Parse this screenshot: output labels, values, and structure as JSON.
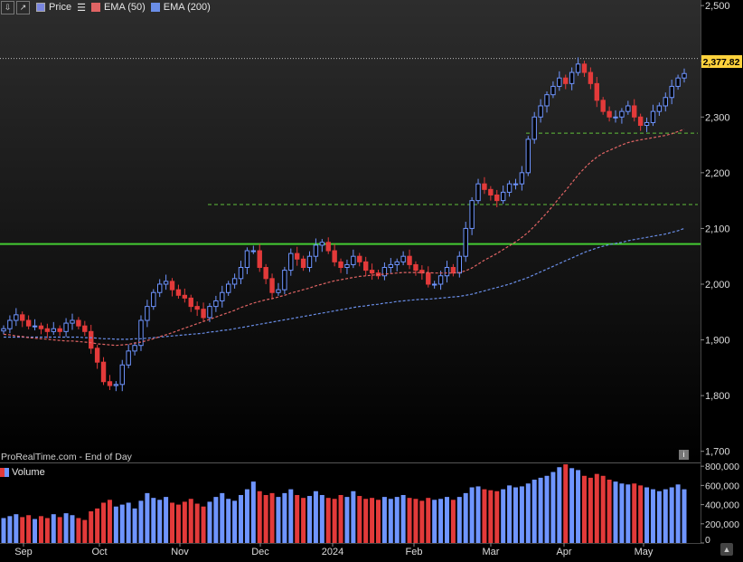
{
  "legend": {
    "price": "Price",
    "ema50": "EMA (50)",
    "ema200": "EMA (200)",
    "ema50_color": "#e06464",
    "ema200_color": "#6a8ee8"
  },
  "volume_label": "Volume",
  "watermark": "ProRealTime.com - End of Day",
  "last_price": "2,377.82",
  "colors": {
    "up": "#6f95ff",
    "down": "#e33a3a",
    "support": "#44cc33",
    "background": "#000000"
  },
  "chart_data": {
    "type": "candlestick",
    "x_tick_labels": [
      "Sep",
      "Oct",
      "Nov",
      "Dec",
      "2024",
      "Feb",
      "Mar",
      "Apr",
      "May"
    ],
    "price_axis": {
      "ticks": [
        1700,
        1800,
        1900,
        2000,
        2100,
        2200,
        2300,
        2400,
        2500
      ],
      "tick_labels": [
        "1,700",
        "1,800",
        "1,900",
        "2,000",
        "2,100",
        "2,200",
        "2,300",
        "2,400",
        "2,500"
      ],
      "ylim": [
        1680,
        2510
      ]
    },
    "volume_axis": {
      "ticks": [
        0,
        200000,
        400000,
        600000,
        800000
      ],
      "tick_labels": [
        "0",
        "200,000",
        "400,000",
        "600,000",
        "800,000"
      ],
      "ylim": [
        0,
        830000
      ]
    },
    "horizontal_lines": [
      {
        "value": 2072,
        "style": "solid",
        "extent": "full"
      },
      {
        "value": 2143,
        "style": "dashed",
        "extent": "from-dec"
      },
      {
        "value": 2271,
        "style": "dashed",
        "extent": "from-mar"
      },
      {
        "value": 2405,
        "style": "dotted",
        "extent": "full"
      }
    ],
    "price_path_close": [
      1920,
      1935,
      1945,
      1935,
      1925,
      1925,
      1920,
      1915,
      1920,
      1915,
      1930,
      1935,
      1925,
      1915,
      1885,
      1860,
      1825,
      1818,
      1820,
      1855,
      1880,
      1890,
      1935,
      1960,
      1985,
      2000,
      2005,
      1990,
      1980,
      1975,
      1960,
      1955,
      1940,
      1960,
      1970,
      1985,
      2000,
      2010,
      2030,
      2060,
      2060,
      2030,
      2010,
      1985,
      1990,
      2025,
      2055,
      2045,
      2030,
      2050,
      2070,
      2075,
      2060,
      2040,
      2030,
      2035,
      2050,
      2040,
      2025,
      2020,
      2015,
      2030,
      2035,
      2040,
      2050,
      2035,
      2025,
      2020,
      2000,
      2000,
      2015,
      2030,
      2020,
      2050,
      2100,
      2150,
      2180,
      2170,
      2160,
      2150,
      2165,
      2180,
      2180,
      2200,
      2260,
      2300,
      2320,
      2340,
      2355,
      2370,
      2360,
      2380,
      2395,
      2380,
      2360,
      2330,
      2310,
      2300,
      2300,
      2310,
      2320,
      2300,
      2285,
      2290,
      2310,
      2320,
      2335,
      2355,
      2370,
      2378
    ],
    "ema50": [
      1910,
      1909,
      1907,
      1906,
      1904,
      1903,
      1902,
      1901,
      1900,
      1899,
      1898,
      1898,
      1897,
      1896,
      1895,
      1893,
      1892,
      1891,
      1890,
      1891,
      1892,
      1894,
      1896,
      1899,
      1902,
      1906,
      1909,
      1913,
      1917,
      1921,
      1925,
      1929,
      1933,
      1937,
      1941,
      1945,
      1949,
      1953,
      1958,
      1962,
      1966,
      1969,
      1972,
      1974,
      1977,
      1980,
      1984,
      1987,
      1990,
      1993,
      1997,
      2000,
      2003,
      2006,
      2008,
      2010,
      2012,
      2014,
      2015,
      2016,
      2017,
      2018,
      2019,
      2020,
      2021,
      2021,
      2021,
      2021,
      2021,
      2020,
      2020,
      2020,
      2020,
      2021,
      2024,
      2029,
      2036,
      2043,
      2049,
      2055,
      2062,
      2069,
      2076,
      2084,
      2093,
      2104,
      2116,
      2128,
      2141,
      2155,
      2168,
      2182,
      2196,
      2208,
      2219,
      2228,
      2235,
      2240,
      2245,
      2250,
      2254,
      2257,
      2259,
      2261,
      2263,
      2265,
      2267,
      2270,
      2274,
      2278
    ],
    "ema200": [
      1905,
      1905,
      1905,
      1905,
      1905,
      1905,
      1905,
      1905,
      1905,
      1905,
      1905,
      1905,
      1905,
      1904,
      1904,
      1903,
      1902,
      1902,
      1901,
      1901,
      1901,
      1902,
      1902,
      1903,
      1904,
      1905,
      1906,
      1907,
      1908,
      1909,
      1910,
      1911,
      1912,
      1914,
      1915,
      1917,
      1918,
      1920,
      1922,
      1924,
      1926,
      1928,
      1930,
      1932,
      1934,
      1936,
      1938,
      1940,
      1942,
      1944,
      1946,
      1948,
      1950,
      1952,
      1954,
      1956,
      1958,
      1960,
      1961,
      1963,
      1964,
      1966,
      1967,
      1969,
      1970,
      1971,
      1972,
      1973,
      1973,
      1974,
      1975,
      1976,
      1977,
      1978,
      1980,
      1982,
      1985,
      1988,
      1991,
      1994,
      1997,
      2000,
      2004,
      2008,
      2012,
      2017,
      2022,
      2027,
      2032,
      2037,
      2042,
      2047,
      2052,
      2057,
      2061,
      2065,
      2068,
      2071,
      2073,
      2075,
      2078,
      2080,
      2082,
      2084,
      2086,
      2088,
      2090,
      2093,
      2096,
      2100
    ],
    "volume_levels": [
      260000,
      280000,
      300000,
      270000,
      290000,
      250000,
      280000,
      260000,
      300000,
      270000,
      310000,
      290000,
      260000,
      240000,
      330000,
      360000,
      420000,
      450000,
      380000,
      400000,
      420000,
      360000,
      440000,
      520000,
      470000,
      450000,
      480000,
      420000,
      400000,
      430000,
      460000,
      410000,
      380000,
      430000,
      480000,
      520000,
      460000,
      440000,
      500000,
      560000,
      640000,
      540000,
      500000,
      520000,
      480000,
      520000,
      560000,
      500000,
      470000,
      490000,
      540000,
      500000,
      470000,
      460000,
      500000,
      480000,
      540000,
      490000,
      460000,
      470000,
      450000,
      480000,
      460000,
      480000,
      500000,
      470000,
      460000,
      440000,
      470000,
      450000,
      460000,
      480000,
      450000,
      480000,
      520000,
      580000,
      590000,
      560000,
      550000,
      540000,
      560000,
      600000,
      580000,
      590000,
      620000,
      660000,
      680000,
      700000,
      740000,
      790000,
      820000,
      780000,
      760000,
      700000,
      680000,
      720000,
      700000,
      660000,
      640000,
      620000,
      610000,
      620000,
      600000,
      580000,
      560000,
      540000,
      560000,
      580000,
      610000,
      560000
    ]
  }
}
